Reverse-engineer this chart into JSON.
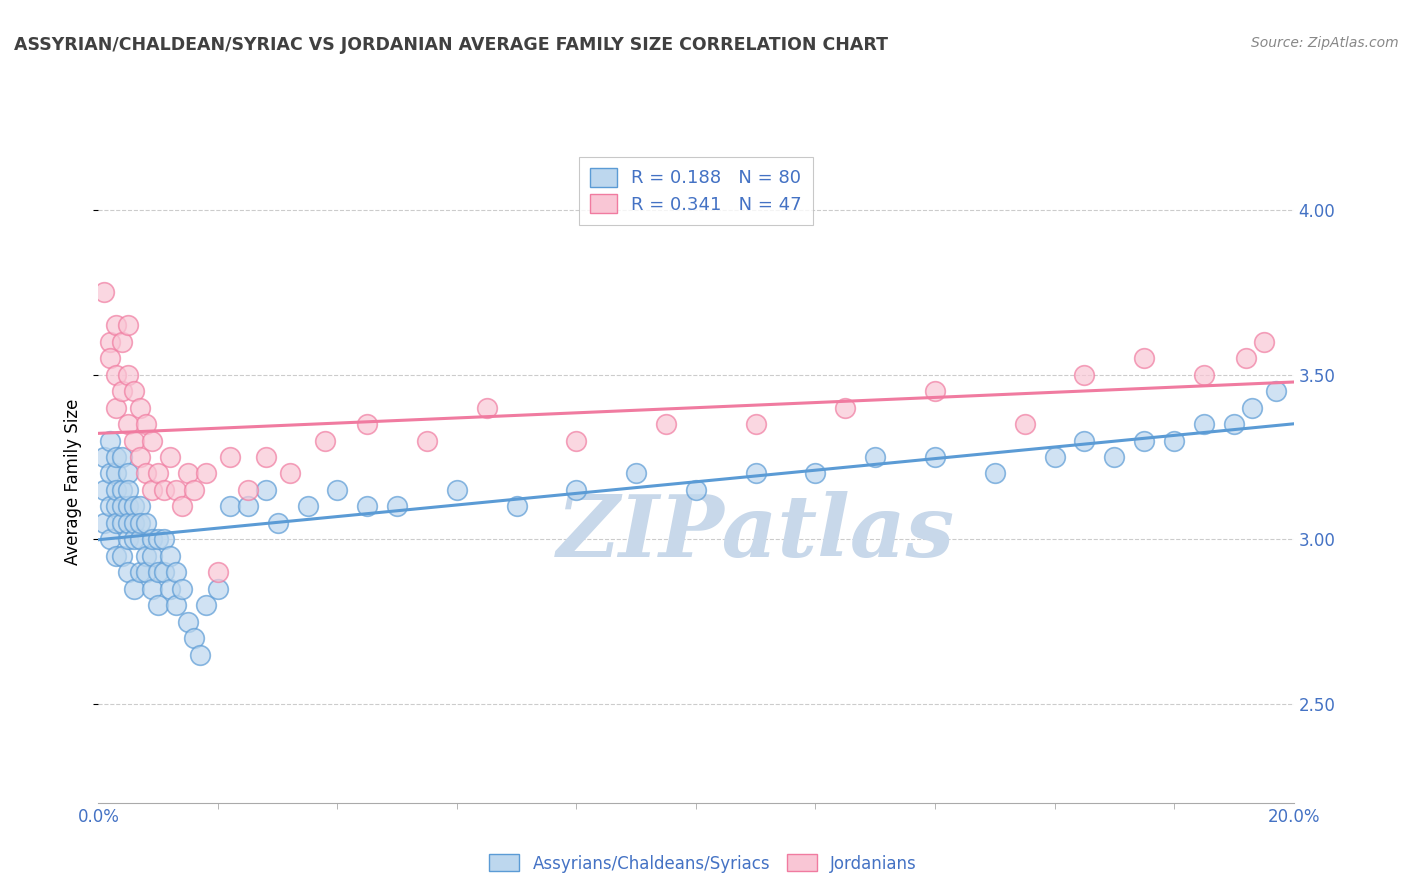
{
  "title": "ASSYRIAN/CHALDEAN/SYRIAC VS JORDANIAN AVERAGE FAMILY SIZE CORRELATION CHART",
  "source": "Source: ZipAtlas.com",
  "ylabel": "Average Family Size",
  "xlim": [
    0.0,
    0.2
  ],
  "ylim": [
    2.2,
    4.15
  ],
  "yticks_right": [
    2.5,
    3.0,
    3.5,
    4.0
  ],
  "xtick_major": [
    0.0,
    0.2
  ],
  "xticklabels_major": [
    "0.0%",
    "20.0%"
  ],
  "blue_color": "#5b9bd5",
  "blue_fill": "#bdd7ee",
  "pink_color": "#f07ba0",
  "pink_fill": "#f9c6d5",
  "R_blue": 0.188,
  "N_blue": 80,
  "R_pink": 0.341,
  "N_pink": 47,
  "legend_label_blue": "Assyrians/Chaldeans/Syriacs",
  "legend_label_pink": "Jordanians",
  "watermark": "ZIPatlas",
  "watermark_color": "#c8d8ea",
  "title_color": "#404040",
  "axis_label_color": "#4472c4",
  "tick_color": "#aaaaaa",
  "grid_color": "#cccccc",
  "background_color": "#ffffff",
  "blue_scatter_x": [
    0.001,
    0.001,
    0.001,
    0.002,
    0.002,
    0.002,
    0.002,
    0.003,
    0.003,
    0.003,
    0.003,
    0.003,
    0.003,
    0.004,
    0.004,
    0.004,
    0.004,
    0.004,
    0.005,
    0.005,
    0.005,
    0.005,
    0.005,
    0.005,
    0.006,
    0.006,
    0.006,
    0.006,
    0.007,
    0.007,
    0.007,
    0.007,
    0.008,
    0.008,
    0.008,
    0.009,
    0.009,
    0.009,
    0.01,
    0.01,
    0.01,
    0.011,
    0.011,
    0.012,
    0.012,
    0.013,
    0.013,
    0.014,
    0.015,
    0.016,
    0.017,
    0.018,
    0.02,
    0.022,
    0.025,
    0.028,
    0.03,
    0.035,
    0.04,
    0.045,
    0.05,
    0.06,
    0.07,
    0.08,
    0.09,
    0.1,
    0.11,
    0.12,
    0.13,
    0.14,
    0.15,
    0.16,
    0.165,
    0.17,
    0.175,
    0.18,
    0.185,
    0.19,
    0.193,
    0.197
  ],
  "blue_scatter_y": [
    3.15,
    3.25,
    3.05,
    3.2,
    3.1,
    3.3,
    3.0,
    3.1,
    3.2,
    3.05,
    3.15,
    2.95,
    3.25,
    3.05,
    3.15,
    3.25,
    2.95,
    3.1,
    3.0,
    3.1,
    3.2,
    2.9,
    3.05,
    3.15,
    3.0,
    3.1,
    2.85,
    3.05,
    3.0,
    3.1,
    2.9,
    3.05,
    2.95,
    3.05,
    2.9,
    2.95,
    3.0,
    2.85,
    2.9,
    3.0,
    2.8,
    2.9,
    3.0,
    2.85,
    2.95,
    2.8,
    2.9,
    2.85,
    2.75,
    2.7,
    2.65,
    2.8,
    2.85,
    3.1,
    3.1,
    3.15,
    3.05,
    3.1,
    3.15,
    3.1,
    3.1,
    3.15,
    3.1,
    3.15,
    3.2,
    3.15,
    3.2,
    3.2,
    3.25,
    3.25,
    3.2,
    3.25,
    3.3,
    3.25,
    3.3,
    3.3,
    3.35,
    3.35,
    3.4,
    3.45
  ],
  "pink_scatter_x": [
    0.001,
    0.002,
    0.002,
    0.003,
    0.003,
    0.003,
    0.004,
    0.004,
    0.005,
    0.005,
    0.005,
    0.006,
    0.006,
    0.007,
    0.007,
    0.008,
    0.008,
    0.009,
    0.009,
    0.01,
    0.011,
    0.012,
    0.013,
    0.014,
    0.015,
    0.016,
    0.018,
    0.02,
    0.022,
    0.025,
    0.028,
    0.032,
    0.038,
    0.045,
    0.055,
    0.065,
    0.08,
    0.095,
    0.11,
    0.125,
    0.14,
    0.155,
    0.165,
    0.175,
    0.185,
    0.192,
    0.195
  ],
  "pink_scatter_y": [
    3.75,
    3.6,
    3.55,
    3.5,
    3.65,
    3.4,
    3.45,
    3.6,
    3.35,
    3.5,
    3.65,
    3.3,
    3.45,
    3.25,
    3.4,
    3.2,
    3.35,
    3.15,
    3.3,
    3.2,
    3.15,
    3.25,
    3.15,
    3.1,
    3.2,
    3.15,
    3.2,
    2.9,
    3.25,
    3.15,
    3.25,
    3.2,
    3.3,
    3.35,
    3.3,
    3.4,
    3.3,
    3.35,
    3.35,
    3.4,
    3.45,
    3.35,
    3.5,
    3.55,
    3.5,
    3.55,
    3.6
  ]
}
